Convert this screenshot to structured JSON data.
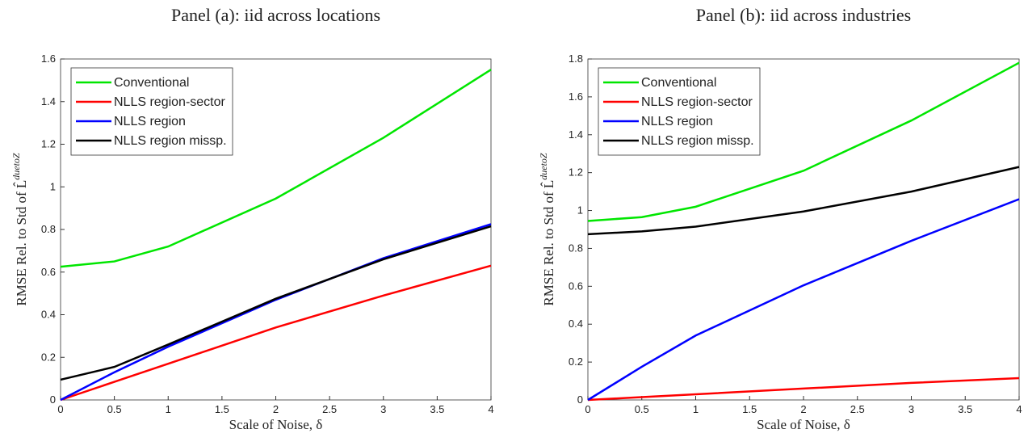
{
  "chart_data": [
    {
      "type": "line",
      "title": "Panel (a): iid across locations",
      "x_label": "Scale of Noise, δ",
      "y_label": "RMSE Rel. to Std of L̂",
      "y_label_sup": "duetoZ",
      "x": [
        0,
        0.5,
        1,
        2,
        3,
        4
      ],
      "xlim": [
        0,
        4
      ],
      "xticks": [
        0,
        0.5,
        1,
        1.5,
        2,
        2.5,
        3,
        3.5,
        4
      ],
      "ylim": [
        0,
        1.6
      ],
      "yticks": [
        0,
        0.2,
        0.4,
        0.6,
        0.8,
        1,
        1.2,
        1.4,
        1.6
      ],
      "legend": "upper left",
      "series": [
        {
          "name": "Conventional",
          "color": "#00e600",
          "values": [
            0.625,
            0.65,
            0.72,
            0.945,
            1.23,
            1.55
          ]
        },
        {
          "name": "NLLS region-sector",
          "color": "#ff0000",
          "values": [
            0,
            0.085,
            0.17,
            0.34,
            0.49,
            0.63
          ]
        },
        {
          "name": "NLLS region",
          "color": "#0000ff",
          "values": [
            0,
            0.13,
            0.25,
            0.47,
            0.665,
            0.825
          ]
        },
        {
          "name": "NLLS region missp.",
          "color": "#000000",
          "values": [
            0.095,
            0.155,
            0.26,
            0.475,
            0.66,
            0.815
          ]
        }
      ]
    },
    {
      "type": "line",
      "title": "Panel (b): iid across industries",
      "x_label": "Scale of Noise, δ",
      "y_label": "RMSE Rel. to Std of L̂",
      "y_label_sup": "duetoZ",
      "x": [
        0,
        0.5,
        1,
        2,
        3,
        4
      ],
      "xlim": [
        0,
        4
      ],
      "xticks": [
        0,
        0.5,
        1,
        1.5,
        2,
        2.5,
        3,
        3.5,
        4
      ],
      "ylim": [
        0,
        1.8
      ],
      "yticks": [
        0,
        0.2,
        0.4,
        0.6,
        0.8,
        1,
        1.2,
        1.4,
        1.6,
        1.8
      ],
      "legend": "upper left",
      "series": [
        {
          "name": "Conventional",
          "color": "#00e600",
          "values": [
            0.945,
            0.965,
            1.02,
            1.21,
            1.475,
            1.78
          ]
        },
        {
          "name": "NLLS region-sector",
          "color": "#ff0000",
          "values": [
            0,
            0.015,
            0.03,
            0.06,
            0.09,
            0.115
          ]
        },
        {
          "name": "NLLS region",
          "color": "#0000ff",
          "values": [
            0,
            0.175,
            0.34,
            0.605,
            0.84,
            1.06
          ]
        },
        {
          "name": "NLLS region missp.",
          "color": "#000000",
          "values": [
            0.875,
            0.89,
            0.915,
            0.995,
            1.1,
            1.23
          ]
        }
      ]
    }
  ]
}
